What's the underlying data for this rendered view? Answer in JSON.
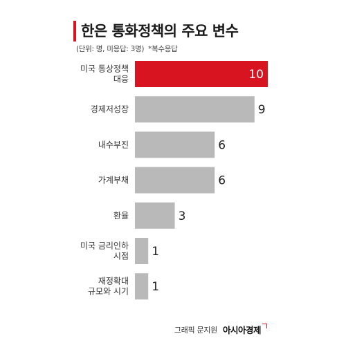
{
  "header": {
    "title": "한은 통화정책의 주요 변수",
    "unit_note": "(단위: 명, 미응답: 3명)",
    "multi_note": "*복수응답"
  },
  "chart_data": {
    "type": "bar",
    "orientation": "horizontal",
    "categories": [
      [
        "미국 통상정책",
        "대응"
      ],
      [
        "경제저성장"
      ],
      [
        "내수부진"
      ],
      [
        "가계부채"
      ],
      [
        "환율"
      ],
      [
        "미국 금리인하",
        "시점"
      ],
      [
        "재정확대",
        "규모와 시기"
      ]
    ],
    "values": [
      10,
      9,
      6,
      6,
      3,
      1,
      1
    ],
    "xlim": [
      0,
      10
    ],
    "highlight_index": 0,
    "colors": {
      "highlight": "#d7141f",
      "default": "#b9b9b9"
    }
  },
  "footer": {
    "credit": "그래픽 문지원",
    "brand": "아시아경제"
  }
}
